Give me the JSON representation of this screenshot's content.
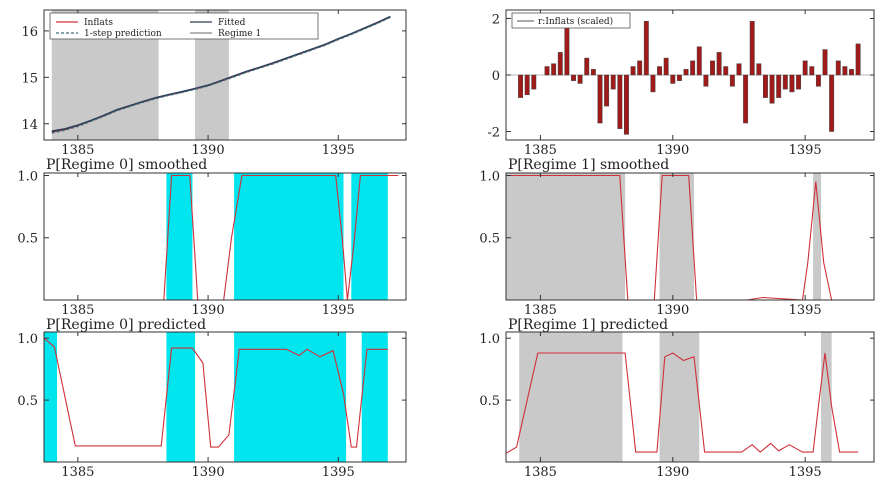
{
  "colors": {
    "regime_shade": "#c9c9c9",
    "regime0_shade": "#00e5ee",
    "red": "#d0303a",
    "fitted": "#2f3c55",
    "bar_fill": "#a11a1a",
    "bar_edge": "#444444",
    "axis": "#333333"
  },
  "chart_data": [
    {
      "id": "p1",
      "type": "line",
      "xlim": [
        1383.7,
        1397.6
      ],
      "ylim": [
        13.65,
        16.45
      ],
      "xticks": [
        1385,
        1390,
        1395
      ],
      "yticks": [
        14,
        15,
        16
      ],
      "legend": [
        "Inflats",
        "Fitted",
        "1-step prediction",
        "Regime 1"
      ],
      "legend_position": "top-left",
      "shade_regime1": [
        [
          1384.0,
          1388.1
        ],
        [
          1389.5,
          1390.8
        ]
      ],
      "series": [
        {
          "name": "Inflats",
          "x": [
            1384.0,
            1384.5,
            1385.0,
            1385.5,
            1386.0,
            1386.5,
            1387.0,
            1387.5,
            1388.0,
            1388.5,
            1389.0,
            1389.5,
            1390.0,
            1390.5,
            1391.0,
            1391.5,
            1392.0,
            1392.5,
            1393.0,
            1393.5,
            1394.0,
            1394.5,
            1395.0,
            1395.5,
            1396.0,
            1396.5,
            1397.0
          ],
          "y": [
            13.82,
            13.87,
            13.96,
            14.06,
            14.17,
            14.29,
            14.38,
            14.47,
            14.55,
            14.62,
            14.68,
            14.75,
            14.82,
            14.92,
            15.02,
            15.12,
            15.21,
            15.3,
            15.4,
            15.5,
            15.6,
            15.7,
            15.82,
            15.93,
            16.05,
            16.17,
            16.3
          ]
        },
        {
          "name": "Fitted",
          "x": [
            1384.0,
            1384.5,
            1385.0,
            1385.5,
            1386.0,
            1386.5,
            1387.0,
            1387.5,
            1388.0,
            1388.5,
            1389.0,
            1389.5,
            1390.0,
            1390.5,
            1391.0,
            1391.5,
            1392.0,
            1392.5,
            1393.0,
            1393.5,
            1394.0,
            1394.5,
            1395.0,
            1395.5,
            1396.0,
            1396.5,
            1397.0
          ],
          "y": [
            13.84,
            13.89,
            13.97,
            14.07,
            14.18,
            14.3,
            14.39,
            14.48,
            14.56,
            14.63,
            14.69,
            14.76,
            14.83,
            14.93,
            15.03,
            15.13,
            15.22,
            15.31,
            15.41,
            15.51,
            15.61,
            15.71,
            15.83,
            15.94,
            16.06,
            16.18,
            16.31
          ]
        },
        {
          "name": "1-step prediction",
          "x": [
            1384.0,
            1384.5,
            1385.0,
            1385.5,
            1386.0,
            1386.5,
            1387.0,
            1387.5,
            1388.0,
            1388.5,
            1389.0,
            1389.5,
            1390.0,
            1390.5,
            1391.0,
            1391.5,
            1392.0,
            1392.5,
            1393.0,
            1393.5,
            1394.0,
            1394.5,
            1395.0,
            1395.5,
            1396.0,
            1396.5,
            1397.0
          ],
          "y": [
            13.8,
            13.86,
            13.94,
            14.05,
            14.16,
            14.28,
            14.37,
            14.46,
            14.54,
            14.61,
            14.67,
            14.74,
            14.81,
            14.91,
            15.01,
            15.11,
            15.2,
            15.29,
            15.39,
            15.49,
            15.59,
            15.69,
            15.81,
            15.92,
            16.04,
            16.16,
            16.29
          ]
        }
      ]
    },
    {
      "id": "p2",
      "type": "bar",
      "xlim": [
        1383.7,
        1397.6
      ],
      "ylim": [
        -2.3,
        2.3
      ],
      "xticks": [
        1385,
        1390,
        1395
      ],
      "yticks": [
        -2,
        0,
        2
      ],
      "legend": [
        "r:Inflats (scaled)"
      ],
      "legend_position": "top-left",
      "x": [
        1384.25,
        1384.5,
        1384.75,
        1385.25,
        1385.5,
        1385.75,
        1386.0,
        1386.25,
        1386.5,
        1386.75,
        1387.0,
        1387.25,
        1387.5,
        1387.75,
        1388.0,
        1388.25,
        1388.5,
        1388.75,
        1389.0,
        1389.25,
        1389.5,
        1389.75,
        1390.0,
        1390.25,
        1390.5,
        1390.75,
        1391.0,
        1391.25,
        1391.5,
        1391.75,
        1392.0,
        1392.25,
        1392.5,
        1392.75,
        1393.0,
        1393.25,
        1393.5,
        1393.75,
        1394.0,
        1394.25,
        1394.5,
        1394.75,
        1395.0,
        1395.25,
        1395.5,
        1395.75,
        1396.0,
        1396.25,
        1396.5,
        1396.75,
        1397.0
      ],
      "values": [
        -0.8,
        -0.7,
        -0.5,
        0.3,
        0.4,
        0.8,
        2.0,
        -0.2,
        -0.3,
        0.6,
        0.2,
        -1.7,
        -1.1,
        -0.5,
        -1.9,
        -2.1,
        0.3,
        0.5,
        1.9,
        -0.6,
        0.3,
        0.6,
        -0.3,
        -0.2,
        0.2,
        0.5,
        1.0,
        -0.4,
        0.5,
        0.8,
        0.3,
        -0.4,
        0.4,
        -1.7,
        1.9,
        0.4,
        -0.8,
        -1.0,
        -0.8,
        -0.5,
        -0.6,
        -0.5,
        0.5,
        0.3,
        -0.4,
        0.9,
        -2.0,
        0.5,
        0.3,
        0.2,
        1.1
      ]
    },
    {
      "id": "p3",
      "type": "area",
      "title": "P[Regime 0] smoothed",
      "xlim": [
        1383.7,
        1397.6
      ],
      "ylim": [
        0.0,
        1.02
      ],
      "xticks": [
        1385,
        1390,
        1395
      ],
      "yticks": [
        0.5,
        1.0
      ],
      "ytick_labels": [
        "0.5",
        "1.0"
      ],
      "shade": [
        [
          1388.4,
          1389.4
        ],
        [
          1391.0,
          1395.2
        ],
        [
          1395.5,
          1396.9
        ]
      ],
      "x": [
        1383.7,
        1388.0,
        1388.3,
        1388.6,
        1389.3,
        1389.6,
        1390.6,
        1390.9,
        1391.3,
        1394.9,
        1395.15,
        1395.35,
        1395.6,
        1395.85,
        1396.5,
        1397.3
      ],
      "values": [
        0,
        0,
        0,
        1,
        1,
        0,
        0,
        0.5,
        1,
        1,
        0.5,
        0,
        0.45,
        1,
        1,
        1
      ]
    },
    {
      "id": "p4",
      "type": "area",
      "title": "P[Regime 1] smoothed",
      "xlim": [
        1383.7,
        1397.6
      ],
      "ylim": [
        0.0,
        1.02
      ],
      "xticks": [
        1385,
        1390,
        1395
      ],
      "yticks": [
        0.5,
        1.0
      ],
      "ytick_labels": [
        "0.5",
        "1.0"
      ],
      "shade": [
        [
          1383.7,
          1388.2
        ],
        [
          1389.5,
          1390.8
        ],
        [
          1395.3,
          1395.6
        ]
      ],
      "x": [
        1383.7,
        1388.0,
        1388.3,
        1389.3,
        1389.6,
        1390.6,
        1390.9,
        1392.8,
        1393.4,
        1394.9,
        1395.1,
        1395.4,
        1395.7,
        1396.0,
        1397.3
      ],
      "values": [
        1,
        1,
        0,
        0,
        1,
        1,
        0,
        0,
        0.02,
        0,
        0.3,
        0.95,
        0.3,
        0,
        0
      ]
    },
    {
      "id": "p5",
      "type": "area",
      "title": "P[Regime 0] predicted",
      "xlim": [
        1383.7,
        1397.6
      ],
      "ylim": [
        0.0,
        1.05
      ],
      "xticks": [
        1385,
        1390,
        1395
      ],
      "yticks": [
        0.5,
        1.0
      ],
      "ytick_labels": [
        "0.5",
        "1.0"
      ],
      "shade": [
        [
          1383.7,
          1384.2
        ],
        [
          1388.4,
          1389.5
        ],
        [
          1391.0,
          1395.3
        ],
        [
          1395.9,
          1396.9
        ]
      ],
      "x": [
        1383.7,
        1384.1,
        1384.9,
        1388.2,
        1388.6,
        1389.4,
        1389.8,
        1390.1,
        1390.4,
        1390.8,
        1391.2,
        1393.0,
        1393.5,
        1393.8,
        1394.3,
        1394.8,
        1395.2,
        1395.5,
        1395.7,
        1396.1,
        1396.9
      ],
      "values": [
        1.0,
        0.93,
        0.13,
        0.13,
        0.92,
        0.92,
        0.8,
        0.12,
        0.12,
        0.22,
        0.91,
        0.91,
        0.86,
        0.91,
        0.85,
        0.9,
        0.55,
        0.12,
        0.12,
        0.91,
        0.91
      ]
    },
    {
      "id": "p6",
      "type": "area",
      "title": "P[Regime 1] predicted",
      "xlim": [
        1383.7,
        1397.6
      ],
      "ylim": [
        0.0,
        1.05
      ],
      "xticks": [
        1385,
        1390,
        1395
      ],
      "yticks": [
        0.5,
        1.0
      ],
      "ytick_labels": [
        "0.5",
        "1.0"
      ],
      "shade": [
        [
          1384.2,
          1388.1
        ],
        [
          1389.5,
          1391.0
        ],
        [
          1395.6,
          1396.0
        ]
      ],
      "x": [
        1383.7,
        1384.1,
        1384.9,
        1388.2,
        1388.6,
        1389.4,
        1389.7,
        1390.0,
        1390.4,
        1390.8,
        1391.2,
        1392.6,
        1393.0,
        1393.3,
        1393.7,
        1394.0,
        1394.4,
        1394.9,
        1395.3,
        1395.5,
        1395.75,
        1396.0,
        1396.3,
        1397.0
      ],
      "values": [
        0.07,
        0.12,
        0.88,
        0.88,
        0.08,
        0.08,
        0.85,
        0.88,
        0.82,
        0.85,
        0.08,
        0.08,
        0.14,
        0.08,
        0.15,
        0.09,
        0.14,
        0.08,
        0.08,
        0.45,
        0.88,
        0.45,
        0.08,
        0.08
      ]
    }
  ]
}
